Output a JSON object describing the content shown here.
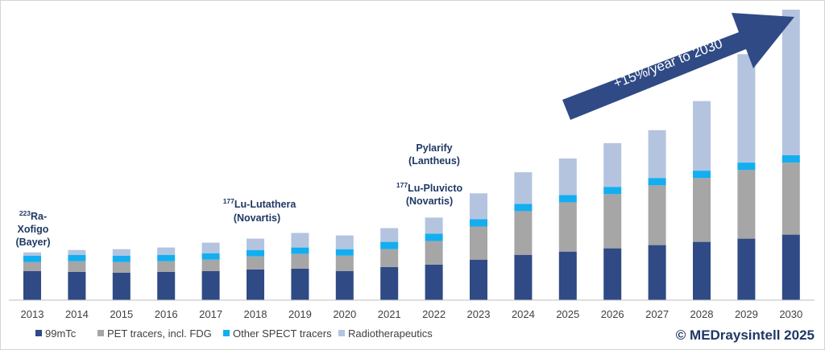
{
  "chart_data": {
    "type": "bar",
    "stacked": true,
    "categories": [
      "2013",
      "2014",
      "2015",
      "2016",
      "2017",
      "2018",
      "2019",
      "2020",
      "2021",
      "2022",
      "2023",
      "2024",
      "2025",
      "2026",
      "2027",
      "2028",
      "2029",
      "2030"
    ],
    "series": [
      {
        "name": "99mTc",
        "color": "#2f4a85",
        "values": [
          36,
          35,
          34,
          35,
          36,
          38,
          39,
          36,
          41,
          44,
          50,
          56,
          60,
          64,
          68,
          72,
          76,
          81
        ]
      },
      {
        "name": "PET tracers, incl. FDG",
        "color": "#a6a6a6",
        "values": [
          11,
          13,
          13,
          13,
          14,
          16,
          18,
          19,
          22,
          29,
          41,
          54,
          61,
          67,
          74,
          79,
          85,
          89
        ]
      },
      {
        "name": "Other SPECT tracers",
        "color": "#13aef0",
        "values": [
          8,
          8,
          8,
          8,
          8,
          8,
          8,
          8,
          9,
          9,
          9,
          9,
          9,
          9,
          9,
          9,
          9,
          9
        ]
      },
      {
        "name": "Radiotherapeutics",
        "color": "#b4c4df",
        "values": [
          4,
          6,
          8,
          9,
          13,
          14,
          18,
          17,
          17,
          20,
          32,
          39,
          45,
          54,
          59,
          86,
          134,
          180
        ]
      }
    ],
    "title": "",
    "xlabel": "",
    "ylabel": "",
    "ylim": [
      0,
      360
    ],
    "grid": false,
    "legend": "bottom-left",
    "annotations": [
      {
        "year": "2013",
        "sup": "223",
        "lines": [
          "Ra-",
          "Xofigo",
          "(Bayer)"
        ]
      },
      {
        "year": "2018",
        "sup": "177",
        "lines": [
          "Lu-Lutathera",
          "(Novartis)"
        ]
      },
      {
        "year": "2022",
        "sup": "",
        "lines": [
          "Pylarify",
          "(Lantheus)"
        ]
      },
      {
        "year": "2022",
        "sup": "177",
        "lines": [
          "Lu-Pluvicto",
          "(Novartis)"
        ]
      }
    ],
    "trend_arrow_label": "+15%/year to 2030"
  },
  "copyright": "© MEDraysintell 2025"
}
